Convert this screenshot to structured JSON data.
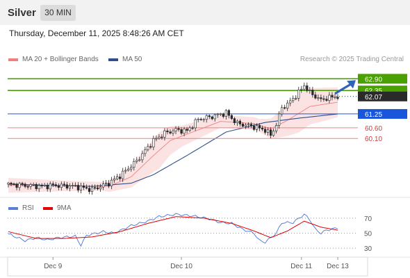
{
  "header": {
    "instrument": "Silver",
    "timeframe": "30 MIN",
    "datetime": "Thursday, December 11, 2025 8:48:26 AM CET"
  },
  "legend": {
    "ma20": "MA 20 + Bollinger Bands",
    "ma50": "MA 50",
    "credit": "Research © 2025 Trading Central"
  },
  "colors": {
    "bollinger_fill": "#fbdada",
    "ma20": "#f08080",
    "ma50": "#2e4f8c",
    "resistance": "#4aa000",
    "support": "#f08080",
    "pivot": "#1a56db",
    "arrow": "#2f63b8",
    "rsi": "#5b7fd8",
    "rsi_ma": "#e00000",
    "candle_up": "#ffffff",
    "candle_down": "#2a2a2a"
  },
  "chart_data": [
    {
      "type": "candlestick",
      "x_ticks": [
        "Dec 9",
        "Dec 10",
        "Dec 11",
        "Dec 13"
      ],
      "ylim": [
        57.4,
        63.4
      ],
      "levels": [
        {
          "label": "62.90",
          "value": 62.9,
          "kind": "resistance"
        },
        {
          "label": "62.35",
          "value": 62.35,
          "kind": "resistance"
        },
        {
          "label": "62.07",
          "value": 62.07,
          "kind": "last"
        },
        {
          "label": "61.25",
          "value": 61.25,
          "kind": "pivot"
        },
        {
          "label": "60.60",
          "value": 60.6,
          "kind": "support"
        },
        {
          "label": "60.10",
          "value": 60.1,
          "kind": "support"
        }
      ],
      "anchors": [
        [
          0,
          57.95
        ],
        [
          12,
          57.85
        ],
        [
          16,
          57.9
        ],
        [
          24,
          57.85
        ],
        [
          30,
          57.7
        ],
        [
          36,
          58.0
        ],
        [
          40,
          58.35
        ],
        [
          46,
          59.05
        ],
        [
          52,
          60.0
        ],
        [
          56,
          60.35
        ],
        [
          60,
          60.5
        ],
        [
          64,
          60.45
        ],
        [
          68,
          61.0
        ],
        [
          72,
          61.1
        ],
        [
          78,
          61.3
        ],
        [
          82,
          60.8
        ],
        [
          88,
          60.65
        ],
        [
          92,
          60.5
        ],
        [
          94,
          60.25
        ],
        [
          96,
          60.75
        ],
        [
          98,
          61.55
        ],
        [
          100,
          61.7
        ],
        [
          104,
          62.25
        ],
        [
          106,
          62.6
        ],
        [
          108,
          62.25
        ],
        [
          112,
          61.9
        ],
        [
          114,
          62.0
        ],
        [
          118,
          62.07
        ]
      ],
      "ma50_anchors": [
        [
          0,
          57.95
        ],
        [
          30,
          57.85
        ],
        [
          44,
          58.0
        ],
        [
          52,
          58.4
        ],
        [
          64,
          59.3
        ],
        [
          78,
          60.4
        ],
        [
          92,
          60.85
        ],
        [
          104,
          61.05
        ],
        [
          118,
          61.25
        ]
      ],
      "ma20_anchors": [
        [
          0,
          57.9
        ],
        [
          36,
          57.85
        ],
        [
          44,
          58.3
        ],
        [
          52,
          59.3
        ],
        [
          58,
          60.0
        ],
        [
          66,
          60.4
        ],
        [
          76,
          60.9
        ],
        [
          88,
          60.8
        ],
        [
          94,
          60.55
        ],
        [
          100,
          60.95
        ],
        [
          108,
          61.6
        ],
        [
          118,
          61.8
        ]
      ],
      "bb_width_anchors": [
        [
          0,
          0.35
        ],
        [
          20,
          0.25
        ],
        [
          34,
          0.2
        ],
        [
          44,
          0.5
        ],
        [
          54,
          0.85
        ],
        [
          62,
          0.5
        ],
        [
          76,
          0.3
        ],
        [
          90,
          0.3
        ],
        [
          98,
          0.65
        ],
        [
          104,
          0.9
        ],
        [
          112,
          0.8
        ],
        [
          118,
          0.7
        ]
      ],
      "candle_count": 119
    },
    {
      "type": "line",
      "name": "RSI",
      "y_ticks": [
        "70",
        "50",
        "30"
      ],
      "ylim": [
        20,
        80
      ],
      "series": [
        {
          "name": "RSI",
          "anchors": [
            [
              0,
              49
            ],
            [
              6,
              40
            ],
            [
              10,
              44
            ],
            [
              14,
              41
            ],
            [
              18,
              44
            ],
            [
              24,
              46
            ],
            [
              26,
              34
            ],
            [
              28,
              47
            ],
            [
              34,
              52
            ],
            [
              38,
              50
            ],
            [
              44,
              60
            ],
            [
              50,
              66
            ],
            [
              54,
              72
            ],
            [
              60,
              75
            ],
            [
              66,
              73
            ],
            [
              72,
              69
            ],
            [
              76,
              64
            ],
            [
              80,
              63
            ],
            [
              84,
              55
            ],
            [
              88,
              50
            ],
            [
              90,
              40
            ],
            [
              92,
              38
            ],
            [
              94,
              44
            ],
            [
              96,
              50
            ],
            [
              98,
              64
            ],
            [
              102,
              64
            ],
            [
              106,
              75
            ],
            [
              108,
              68
            ],
            [
              110,
              55
            ],
            [
              112,
              50
            ],
            [
              114,
              54
            ],
            [
              118,
              57
            ]
          ]
        },
        {
          "name": "9MA",
          "anchors": [
            [
              0,
              52
            ],
            [
              10,
              43
            ],
            [
              20,
              43
            ],
            [
              30,
              45
            ],
            [
              40,
              52
            ],
            [
              50,
              63
            ],
            [
              60,
              72
            ],
            [
              70,
              70
            ],
            [
              80,
              63
            ],
            [
              88,
              53
            ],
            [
              94,
              44
            ],
            [
              100,
              53
            ],
            [
              106,
              66
            ],
            [
              112,
              58
            ],
            [
              118,
              54
            ]
          ]
        }
      ]
    }
  ]
}
